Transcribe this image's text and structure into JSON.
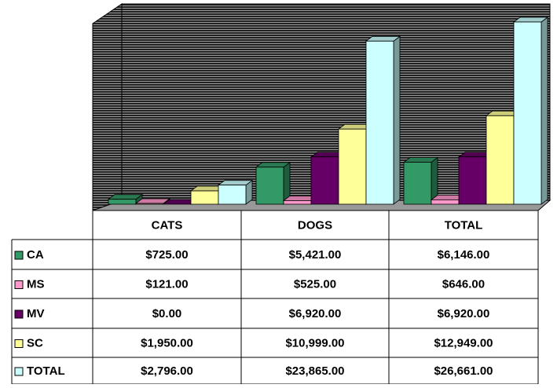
{
  "chart_data": {
    "type": "bar3d",
    "categories": [
      "CATS",
      "DOGS",
      "TOTAL"
    ],
    "series": [
      {
        "name": "CA",
        "color": "#339966",
        "values": [
          725,
          5421,
          6146
        ],
        "value_labels": [
          "$725.00",
          "$5,421.00",
          "$6,146.00"
        ]
      },
      {
        "name": "MS",
        "color": "#ff99cc",
        "values": [
          121,
          525,
          646
        ],
        "value_labels": [
          "$121.00",
          "$525.00",
          "$646.00"
        ]
      },
      {
        "name": "MV",
        "color": "#660066",
        "values": [
          0,
          6920,
          6920
        ],
        "value_labels": [
          "$0.00",
          "$6,920.00",
          "$6,920.00"
        ]
      },
      {
        "name": "SC",
        "color": "#ffff99",
        "values": [
          1950,
          10999,
          12949
        ],
        "value_labels": [
          "$1,950.00",
          "$10,999.00",
          "$12,949.00"
        ]
      },
      {
        "name": "TOTAL",
        "color": "#ccffff",
        "values": [
          2796,
          23865,
          26661
        ],
        "value_labels": [
          "$2,796.00",
          "$23,865.00",
          "$26,661.00"
        ]
      }
    ]
  }
}
